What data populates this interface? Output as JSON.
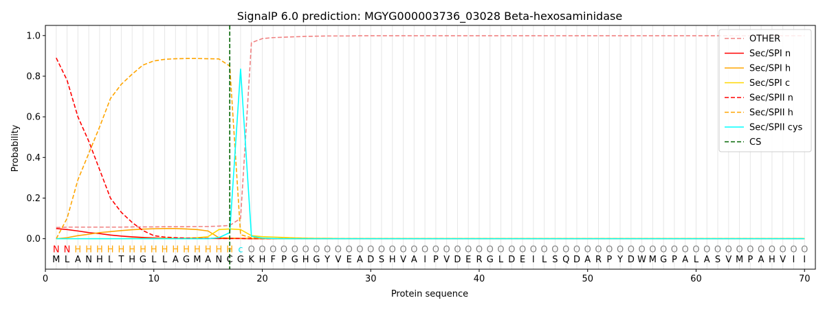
{
  "chart_data": {
    "type": "line",
    "title": "SignalP 6.0 prediction: MGYG000003736_03028 Beta-hexosaminidase",
    "xlabel": "Protein sequence",
    "ylabel": "Probability",
    "xlim": [
      0,
      71
    ],
    "ylim": [
      -0.15,
      1.05
    ],
    "xticks": [
      0,
      10,
      20,
      30,
      40,
      50,
      60,
      70
    ],
    "yticks": [
      0.0,
      0.2,
      0.4,
      0.6,
      0.8,
      1.0
    ],
    "legend_position": "top-right",
    "sequence": [
      "M",
      "L",
      "A",
      "N",
      "H",
      "L",
      "T",
      "H",
      "G",
      "L",
      "L",
      "A",
      "G",
      "M",
      "A",
      "N",
      "C",
      "G",
      "K",
      "H",
      "F",
      "P",
      "G",
      "H",
      "G",
      "Y",
      "V",
      "E",
      "A",
      "D",
      "S",
      "H",
      "V",
      "A",
      "I",
      "P",
      "V",
      "D",
      "E",
      "R",
      "G",
      "L",
      "D",
      "E",
      "I",
      "L",
      "S",
      "Q",
      "D",
      "A",
      "R",
      "P",
      "Y",
      "D",
      "W",
      "M",
      "G",
      "P",
      "A",
      "L",
      "A",
      "S",
      "V",
      "M",
      "P",
      "A",
      "H",
      "V",
      "I",
      "I"
    ],
    "prediction": [
      "N",
      "N",
      "H",
      "H",
      "H",
      "H",
      "H",
      "H",
      "H",
      "H",
      "H",
      "H",
      "H",
      "H",
      "H",
      "H",
      "H",
      "c",
      "O",
      "O",
      "O",
      "O",
      "O",
      "O",
      "O",
      "O",
      "O",
      "O",
      "O",
      "O",
      "O",
      "O",
      "O",
      "O",
      "O",
      "O",
      "O",
      "O",
      "O",
      "O",
      "O",
      "O",
      "O",
      "O",
      "O",
      "O",
      "O",
      "O",
      "O",
      "O",
      "O",
      "O",
      "O",
      "O",
      "O",
      "O",
      "O",
      "O",
      "O",
      "O",
      "O",
      "O",
      "O",
      "O",
      "O",
      "O",
      "O",
      "O",
      "O",
      "O"
    ],
    "prediction_colors": {
      "N": "#ff0000",
      "H": "#ffa500",
      "c": "#00e5ee",
      "O": "#808080"
    },
    "cs_position": 17,
    "series": [
      {
        "name": "OTHER",
        "color": "#f08080",
        "dash": "dashed",
        "values": [
          0.055,
          0.057,
          0.057,
          0.057,
          0.057,
          0.057,
          0.057,
          0.058,
          0.058,
          0.058,
          0.059,
          0.059,
          0.059,
          0.06,
          0.06,
          0.062,
          0.065,
          0.1,
          0.965,
          0.985,
          0.99,
          0.992,
          0.994,
          0.996,
          0.997,
          0.998,
          0.998,
          0.998,
          0.999,
          0.999,
          0.999,
          0.999,
          0.999,
          0.999,
          0.999,
          0.999,
          0.999,
          0.999,
          0.999,
          0.999,
          0.999,
          0.999,
          0.999,
          0.999,
          0.999,
          0.999,
          0.999,
          0.999,
          0.999,
          0.999,
          0.999,
          0.999,
          0.999,
          0.999,
          0.999,
          0.999,
          0.999,
          0.999,
          0.999,
          0.999,
          0.999,
          0.999,
          0.999,
          0.999,
          0.999,
          0.999,
          0.999,
          0.999,
          0.999,
          0.999
        ]
      },
      {
        "name": "Sec/SPI n",
        "color": "#ff0000",
        "dash": "solid",
        "values": [
          0.05,
          0.045,
          0.038,
          0.03,
          0.025,
          0.018,
          0.013,
          0.009,
          0.006,
          0.004,
          0.003,
          0.002,
          0.002,
          0.001,
          0.001,
          0.001,
          0.001,
          0.001,
          0,
          0,
          0,
          0,
          0,
          0,
          0,
          0,
          0,
          0,
          0,
          0,
          0,
          0,
          0,
          0,
          0,
          0,
          0,
          0,
          0,
          0,
          0,
          0,
          0,
          0,
          0,
          0,
          0,
          0,
          0,
          0,
          0,
          0,
          0,
          0,
          0,
          0,
          0,
          0,
          0,
          0,
          0,
          0,
          0,
          0,
          0,
          0,
          0,
          0,
          0,
          0
        ]
      },
      {
        "name": "Sec/SPI h",
        "color": "#ffa500",
        "dash": "solid",
        "values": [
          0.0,
          0.005,
          0.015,
          0.022,
          0.03,
          0.035,
          0.04,
          0.044,
          0.047,
          0.049,
          0.05,
          0.05,
          0.048,
          0.045,
          0.038,
          0.005,
          0.003,
          0.002,
          0.001,
          0,
          0,
          0,
          0,
          0,
          0,
          0,
          0,
          0,
          0,
          0,
          0,
          0,
          0,
          0,
          0,
          0,
          0,
          0,
          0,
          0,
          0,
          0,
          0,
          0,
          0,
          0,
          0,
          0,
          0,
          0,
          0,
          0,
          0,
          0,
          0,
          0,
          0,
          0,
          0,
          0,
          0,
          0,
          0,
          0,
          0,
          0,
          0,
          0,
          0,
          0
        ]
      },
      {
        "name": "Sec/SPI c",
        "color": "#ffd700",
        "dash": "solid",
        "values": [
          0.0,
          0.0,
          0.0,
          0.0,
          0.0,
          0.0,
          0.0,
          0.001,
          0.001,
          0.001,
          0.002,
          0.002,
          0.003,
          0.005,
          0.01,
          0.045,
          0.048,
          0.045,
          0.015,
          0.01,
          0.008,
          0.006,
          0.004,
          0.003,
          0.002,
          0.002,
          0.001,
          0.001,
          0.001,
          0.001,
          0.001,
          0.001,
          0.001,
          0.001,
          0.001,
          0.001,
          0.001,
          0.001,
          0.001,
          0.001,
          0.001,
          0.001,
          0.001,
          0.001,
          0.001,
          0.001,
          0.001,
          0.001,
          0.001,
          0.001,
          0.001,
          0.001,
          0.001,
          0.001,
          0.001,
          0.001,
          0.001,
          0.001,
          0.001,
          0.001,
          0.001,
          0.001,
          0.001,
          0.001,
          0.001,
          0.001,
          0.001,
          0.001,
          0.001,
          0.001
        ]
      },
      {
        "name": "Sec/SPII n",
        "color": "#ff0000",
        "dash": "dashed",
        "values": [
          0.89,
          0.78,
          0.6,
          0.48,
          0.34,
          0.2,
          0.13,
          0.08,
          0.04,
          0.015,
          0.008,
          0.005,
          0.003,
          0.002,
          0.002,
          0.001,
          0.001,
          0.001,
          0,
          0,
          0,
          0,
          0,
          0,
          0,
          0,
          0,
          0,
          0,
          0,
          0,
          0,
          0,
          0,
          0,
          0,
          0,
          0,
          0,
          0,
          0,
          0,
          0,
          0,
          0,
          0,
          0,
          0,
          0,
          0,
          0,
          0,
          0,
          0,
          0,
          0,
          0,
          0,
          0,
          0,
          0,
          0,
          0,
          0,
          0,
          0,
          0,
          0,
          0,
          0
        ]
      },
      {
        "name": "Sec/SPII h",
        "color": "#ffa500",
        "dash": "dashed",
        "values": [
          0.0,
          0.1,
          0.29,
          0.42,
          0.55,
          0.69,
          0.76,
          0.81,
          0.855,
          0.875,
          0.883,
          0.886,
          0.887,
          0.887,
          0.886,
          0.885,
          0.85,
          0.02,
          0.005,
          0.002,
          0.001,
          0,
          0,
          0,
          0,
          0,
          0,
          0,
          0,
          0,
          0,
          0,
          0,
          0,
          0,
          0,
          0,
          0,
          0,
          0,
          0,
          0,
          0,
          0,
          0,
          0,
          0,
          0,
          0,
          0,
          0,
          0,
          0,
          0,
          0,
          0,
          0,
          0,
          0,
          0,
          0,
          0,
          0,
          0,
          0,
          0,
          0,
          0,
          0,
          0
        ]
      },
      {
        "name": "Sec/SPII cys",
        "color": "#00ffff",
        "dash": "solid",
        "values": [
          0,
          0,
          0,
          0,
          0,
          0,
          0,
          0,
          0,
          0,
          0,
          0,
          0,
          0,
          0,
          0.005,
          0.03,
          0.835,
          0.012,
          0.003,
          0.001,
          0,
          0,
          0,
          0,
          0,
          0,
          0,
          0,
          0,
          0,
          0,
          0,
          0,
          0,
          0,
          0,
          0,
          0,
          0,
          0,
          0,
          0,
          0,
          0,
          0,
          0,
          0,
          0,
          0,
          0,
          0,
          0,
          0,
          0,
          0,
          0,
          0,
          0,
          0,
          0,
          0,
          0,
          0,
          0,
          0,
          0,
          0,
          0,
          0
        ]
      },
      {
        "name": "CS",
        "color": "#006400",
        "dash": "dashed",
        "values": []
      }
    ]
  }
}
